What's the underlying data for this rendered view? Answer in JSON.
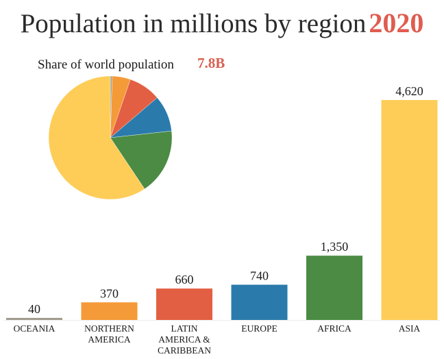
{
  "title": {
    "main": "Population in millions by region",
    "year": "2020"
  },
  "chart_data": [
    {
      "type": "bar",
      "title": "Population in millions by region 2020",
      "xlabel": "",
      "ylabel": "",
      "ylim": [
        0,
        4620
      ],
      "grid": false,
      "categories": [
        "OCEANIA",
        "NORTHERN AMERICA",
        "LATIN AMERICA & CARIBBEAN",
        "EUROPE",
        "AFRICA",
        "ASIA"
      ],
      "category_lines": [
        [
          "OCEANIA"
        ],
        [
          "NORTHERN",
          "AMERICA"
        ],
        [
          "LATIN",
          "AMERICA &",
          "CARIBBEAN"
        ],
        [
          "EUROPE"
        ],
        [
          "AFRICA"
        ],
        [
          "ASIA"
        ]
      ],
      "values": [
        40,
        370,
        660,
        740,
        1350,
        4620
      ],
      "value_labels": [
        "40",
        "370",
        "660",
        "740",
        "1,350",
        "4,620"
      ],
      "colors": [
        "#a09d8f",
        "#f59a38",
        "#e35f43",
        "#2a7bab",
        "#4b8b43",
        "#fecd58"
      ]
    },
    {
      "type": "pie",
      "title": "Share of world population",
      "total_label": "7.8B",
      "total_color": "#d95f4f",
      "categories": [
        "OCEANIA",
        "NORTHERN AMERICA",
        "LATIN AMERICA & CARIBBEAN",
        "EUROPE",
        "AFRICA",
        "ASIA"
      ],
      "values": [
        40,
        370,
        660,
        740,
        1350,
        4620
      ],
      "colors": [
        "#a09d8f",
        "#f59a38",
        "#e35f43",
        "#2a7bab",
        "#4b8b43",
        "#fecd58"
      ],
      "start": "top",
      "direction": "clockwise"
    }
  ]
}
